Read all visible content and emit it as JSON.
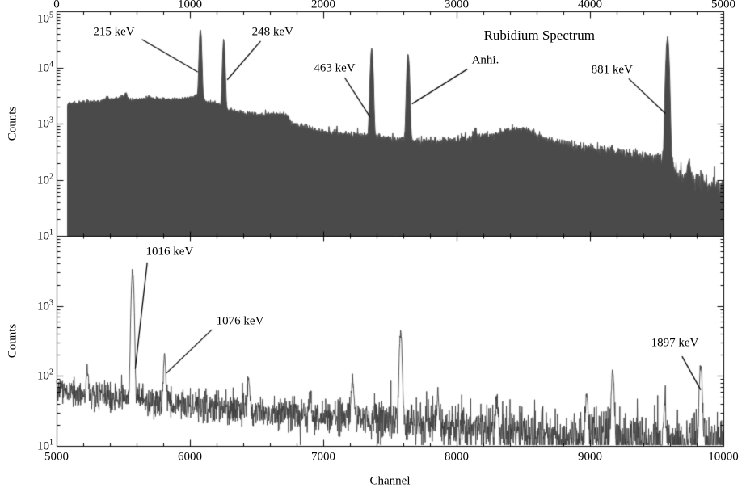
{
  "chart_data": {
    "type": "area",
    "title": "Rubidium Spectrum",
    "xlabel": "Channel",
    "ylabel": "Counts",
    "y_scale": "log",
    "fill_color": "#4a4a4a",
    "line_color": "#3d3d3d",
    "axis_color": "#000000",
    "panels": [
      {
        "name": "top",
        "x_range": [
          0,
          5000
        ],
        "y_exp_range": [
          1,
          5
        ],
        "x_major_ticks": [
          0,
          1000,
          2000,
          3000,
          4000,
          5000
        ],
        "x_minor_step": 200,
        "y_tick_exponents": [
          1,
          2,
          3,
          4,
          5
        ],
        "x_tick_label_side": "top",
        "style": "fill",
        "spectrum_start_channel": 80,
        "noise_coeff": 2.2,
        "continuum": [
          [
            80,
            2200
          ],
          [
            200,
            2400
          ],
          [
            300,
            2500
          ],
          [
            420,
            2700
          ],
          [
            500,
            3000
          ],
          [
            560,
            2600
          ],
          [
            650,
            2750
          ],
          [
            800,
            2750
          ],
          [
            950,
            2750
          ],
          [
            1020,
            2950
          ],
          [
            1060,
            3300
          ],
          [
            1120,
            2500
          ],
          [
            1200,
            2250
          ],
          [
            1300,
            1750
          ],
          [
            1400,
            1520
          ],
          [
            1550,
            1450
          ],
          [
            1700,
            1500
          ],
          [
            1760,
            1020
          ],
          [
            1900,
            800
          ],
          [
            2050,
            700
          ],
          [
            2200,
            640
          ],
          [
            2350,
            590
          ],
          [
            2500,
            540
          ],
          [
            2650,
            505
          ],
          [
            2800,
            485
          ],
          [
            2950,
            500
          ],
          [
            3100,
            550
          ],
          [
            3250,
            620
          ],
          [
            3400,
            770
          ],
          [
            3520,
            790
          ],
          [
            3650,
            560
          ],
          [
            3800,
            430
          ],
          [
            4000,
            360
          ],
          [
            4200,
            310
          ],
          [
            4400,
            270
          ],
          [
            4550,
            240
          ],
          [
            4620,
            200
          ],
          [
            4660,
            110
          ],
          [
            4800,
            95
          ],
          [
            4950,
            78
          ],
          [
            5000,
            70
          ]
        ],
        "peaks": [
          {
            "c": 380,
            "A": 500,
            "w": 10,
            "energy": ""
          },
          {
            "c": 520,
            "A": 600,
            "w": 9,
            "energy": ""
          },
          {
            "c": 700,
            "A": 250,
            "w": 12,
            "energy": ""
          },
          {
            "c": 1079,
            "A": 45000,
            "w": 7,
            "energy": "215 keV"
          },
          {
            "c": 1254,
            "A": 30000,
            "w": 7,
            "energy": "248 keV"
          },
          {
            "c": 1730,
            "A": 150,
            "w": 12,
            "energy": ""
          },
          {
            "c": 2363,
            "A": 21000,
            "w": 8,
            "energy": "463 keV"
          },
          {
            "c": 2636,
            "A": 17000,
            "w": 8,
            "energy": "Anhi."
          },
          {
            "c": 3140,
            "A": 200,
            "w": 12,
            "energy": ""
          },
          {
            "c": 4581,
            "A": 34000,
            "w": 9,
            "energy": "881 keV"
          },
          {
            "c": 4740,
            "A": 120,
            "w": 10,
            "energy": ""
          }
        ],
        "annotations": [
          {
            "text": "215 keV",
            "ch": 430,
            "logy": 4.62,
            "line": [
              [
                640,
                4.5
              ],
              [
                1058,
                3.92
              ]
            ]
          },
          {
            "text": "248 keV",
            "ch": 1620,
            "logy": 4.63,
            "line": [
              [
                1530,
                4.47
              ],
              [
                1280,
                3.78
              ]
            ]
          },
          {
            "text": "463 keV",
            "ch": 2085,
            "logy": 3.98,
            "line": [
              [
                2160,
                3.82
              ],
              [
                2350,
                3.12
              ]
            ]
          },
          {
            "text": "Anhi.",
            "ch": 3215,
            "logy": 4.12,
            "line": [
              [
                3080,
                3.97
              ],
              [
                2665,
                3.35
              ]
            ]
          },
          {
            "text": "881 keV",
            "ch": 4165,
            "logy": 3.95,
            "line": [
              [
                4290,
                3.8
              ],
              [
                4565,
                3.18
              ]
            ]
          }
        ],
        "title_annotation": {
          "text": "Rubidium Spectrum",
          "ch": 3620,
          "logy": 4.57
        }
      },
      {
        "name": "bottom",
        "x_range": [
          5000,
          10000
        ],
        "y_exp_range": [
          1,
          4
        ],
        "x_major_ticks": [
          5000,
          6000,
          7000,
          8000,
          9000,
          10000
        ],
        "x_minor_step": 200,
        "y_tick_exponents": [
          1,
          2,
          3
        ],
        "x_tick_label_side": "bottom",
        "style": "line",
        "spectrum_start_channel": 5000,
        "noise_coeff": 1.6,
        "continuum": [
          [
            5000,
            62
          ],
          [
            5300,
            52
          ],
          [
            5600,
            46
          ],
          [
            6000,
            38
          ],
          [
            6400,
            33
          ],
          [
            6800,
            28
          ],
          [
            7200,
            25
          ],
          [
            7600,
            22
          ],
          [
            8000,
            19
          ],
          [
            8400,
            16
          ],
          [
            8800,
            14
          ],
          [
            9200,
            12.5
          ],
          [
            9600,
            11
          ],
          [
            10000,
            10
          ]
        ],
        "peaks": [
          {
            "c": 5230,
            "A": 70,
            "w": 7,
            "energy": ""
          },
          {
            "c": 5570,
            "A": 3100,
            "w": 8,
            "energy": "1016 keV"
          },
          {
            "c": 5810,
            "A": 150,
            "w": 7,
            "energy": "1076 keV"
          },
          {
            "c": 6440,
            "A": 65,
            "w": 7,
            "energy": ""
          },
          {
            "c": 6900,
            "A": 25,
            "w": 7,
            "energy": ""
          },
          {
            "c": 7220,
            "A": 60,
            "w": 8,
            "energy": ""
          },
          {
            "c": 7580,
            "A": 390,
            "w": 8,
            "energy": ""
          },
          {
            "c": 7860,
            "A": 30,
            "w": 7,
            "energy": ""
          },
          {
            "c": 8300,
            "A": 28,
            "w": 7,
            "energy": ""
          },
          {
            "c": 8975,
            "A": 42,
            "w": 8,
            "energy": ""
          },
          {
            "c": 9170,
            "A": 110,
            "w": 8,
            "energy": ""
          },
          {
            "c": 9560,
            "A": 28,
            "w": 7,
            "energy": ""
          },
          {
            "c": 9830,
            "A": 135,
            "w": 8,
            "energy": "1897 keV"
          }
        ],
        "annotations": [
          {
            "text": "1016 keV",
            "ch": 5848,
            "logy": 3.77,
            "line": [
              [
                5680,
                3.62
              ],
              [
                5590,
                2.1
              ]
            ]
          },
          {
            "text": "1076 keV",
            "ch": 6376,
            "logy": 2.78,
            "line": [
              [
                6164,
                2.66
              ],
              [
                5824,
                2.04
              ]
            ]
          },
          {
            "text": "1897 keV",
            "ch": 9636,
            "logy": 2.46,
            "line": [
              [
                9690,
                2.28
              ],
              [
                9830,
                1.8
              ]
            ]
          }
        ]
      }
    ]
  }
}
